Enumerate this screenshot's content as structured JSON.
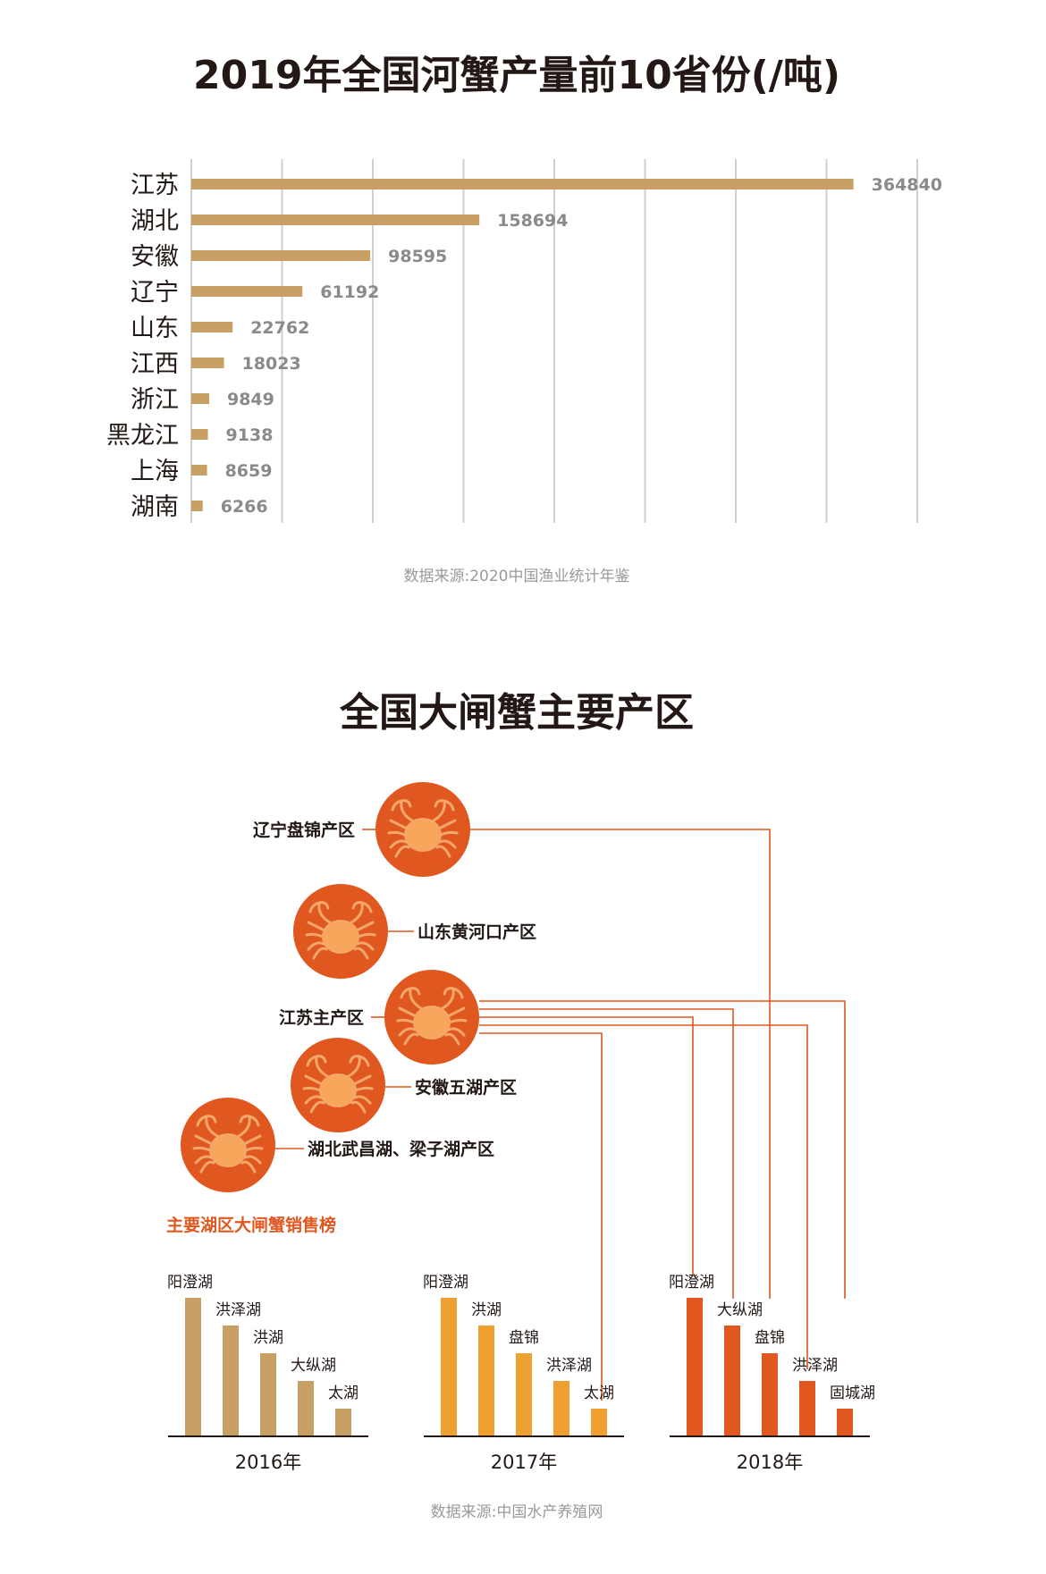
{
  "chart_data": [
    {
      "type": "bar",
      "orientation": "horizontal",
      "title": "2019年全国河蟹产量前10省份(/吨)",
      "categories": [
        "江苏",
        "湖北",
        "安徽",
        "辽宁",
        "山东",
        "江西",
        "浙江",
        "黑龙江",
        "上海",
        "湖南"
      ],
      "values": [
        364840,
        158694,
        98595,
        61192,
        22762,
        18023,
        9849,
        9138,
        8659,
        6266
      ],
      "value_labels": [
        "364840",
        "158694",
        "98595",
        "61192",
        "22762",
        "18023",
        "9849",
        "9138",
        "8659",
        "6266"
      ],
      "xlim": [
        0,
        400000
      ],
      "grid": true,
      "color": "#c9a063",
      "source": "数据来源:2020中国渔业统计年鉴"
    },
    {
      "type": "bar",
      "title": "主要湖区大闸蟹销售榜",
      "groups": [
        {
          "year": "2016年",
          "color": "#c9a063",
          "lakes": [
            "阳澄湖",
            "洪泽湖",
            "洪湖",
            "大纵湖",
            "太湖"
          ],
          "values": [
            5,
            4,
            3,
            2,
            1
          ]
        },
        {
          "year": "2017年",
          "color": "#f0a030",
          "lakes": [
            "阳澄湖",
            "洪湖",
            "盘锦",
            "洪泽湖",
            "太湖"
          ],
          "values": [
            5,
            4,
            3,
            2,
            1
          ]
        },
        {
          "year": "2018年",
          "color": "#e0581f",
          "lakes": [
            "阳澄湖",
            "大纵湖",
            "盘锦",
            "洪泽湖",
            "固城湖"
          ],
          "values": [
            5,
            4,
            3,
            2,
            1
          ]
        }
      ],
      "source": "数据来源:中国水产养殖网"
    }
  ],
  "diagram": {
    "title": "全国大闸蟹主要产区",
    "regions": [
      "辽宁盘锦产区",
      "山东黄河口产区",
      "江苏主产区",
      "安徽五湖产区",
      "湖北武昌湖、梁子湖产区"
    ],
    "circle_color": "#e0581f",
    "icon": "crab-icon"
  }
}
